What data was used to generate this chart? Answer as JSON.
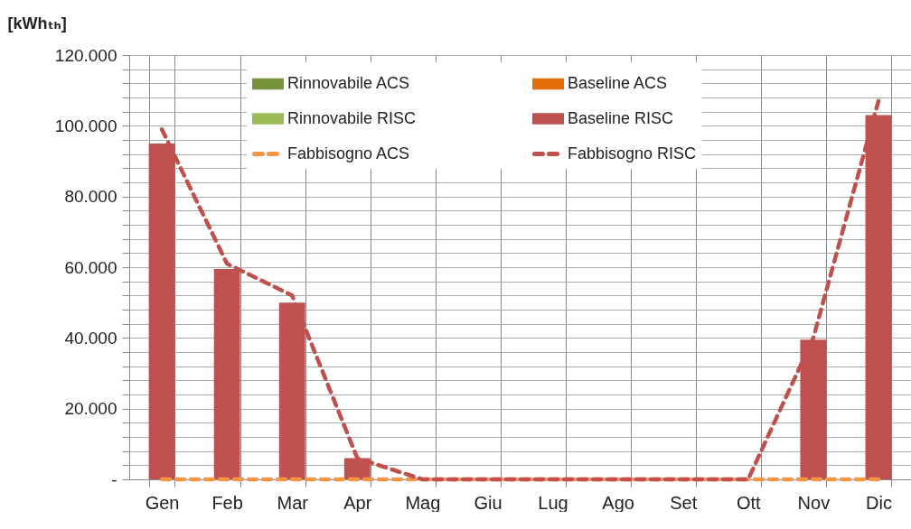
{
  "chart_data": {
    "type": "bar",
    "ylabel": "[kWhₜₕ]",
    "categories": [
      "Gen",
      "Feb",
      "Mar",
      "Apr",
      "Mag",
      "Giu",
      "Lug",
      "Ago",
      "Set",
      "Ott",
      "Nov",
      "Dic"
    ],
    "series": [
      {
        "name": "Rinnovabile ACS",
        "color": "#77933c",
        "values": [
          0,
          0,
          0,
          0,
          0,
          0,
          0,
          0,
          0,
          0,
          0,
          0
        ]
      },
      {
        "name": "Rinnovabile RISC",
        "color": "#9bbb59",
        "values": [
          0,
          0,
          0,
          0,
          0,
          0,
          0,
          0,
          0,
          0,
          0,
          0
        ]
      },
      {
        "name": "Fabbisogno ACS",
        "type": "line",
        "line_style": "dashed",
        "color": "#f79646",
        "values": [
          0,
          0,
          0,
          0,
          0,
          0,
          0,
          0,
          0,
          0,
          0,
          0
        ]
      },
      {
        "name": "Baseline ACS",
        "color": "#e46c0a",
        "values": [
          0,
          0,
          0,
          0,
          0,
          0,
          0,
          0,
          0,
          0,
          0,
          0
        ]
      },
      {
        "name": "Baseline RISC",
        "color": "#c0504d",
        "values": [
          95000,
          59500,
          50000,
          6000,
          0,
          0,
          0,
          0,
          0,
          0,
          39500,
          103000
        ]
      },
      {
        "name": "Fabbisogno RISC",
        "type": "line",
        "line_style": "dashed",
        "color": "#c0504d",
        "values": [
          99000,
          61000,
          52000,
          6000,
          0,
          0,
          0,
          0,
          0,
          0,
          40000,
          107000
        ]
      }
    ],
    "ylim": [
      0,
      120000
    ],
    "yticks": [
      {
        "value": 0,
        "label": "-"
      },
      {
        "value": 4000,
        "label": null
      },
      {
        "value": 8000,
        "label": null
      },
      {
        "value": 12000,
        "label": null
      },
      {
        "value": 16000,
        "label": null
      },
      {
        "value": 20000,
        "label": "20.000"
      },
      {
        "value": 24000,
        "label": null
      },
      {
        "value": 28000,
        "label": null
      },
      {
        "value": 32000,
        "label": null
      },
      {
        "value": 36000,
        "label": null
      },
      {
        "value": 40000,
        "label": "40.000"
      },
      {
        "value": 44000,
        "label": null
      },
      {
        "value": 48000,
        "label": null
      },
      {
        "value": 52000,
        "label": null
      },
      {
        "value": 56000,
        "label": null
      },
      {
        "value": 60000,
        "label": "60.000"
      },
      {
        "value": 64000,
        "label": null
      },
      {
        "value": 68000,
        "label": null
      },
      {
        "value": 72000,
        "label": null
      },
      {
        "value": 76000,
        "label": null
      },
      {
        "value": 80000,
        "label": "80.000"
      },
      {
        "value": 84000,
        "label": null
      },
      {
        "value": 88000,
        "label": null
      },
      {
        "value": 92000,
        "label": null
      },
      {
        "value": 96000,
        "label": null
      },
      {
        "value": 100000,
        "label": "100.000"
      },
      {
        "value": 104000,
        "label": null
      },
      {
        "value": 108000,
        "label": null
      },
      {
        "value": 112000,
        "label": null
      },
      {
        "value": 116000,
        "label": null
      },
      {
        "value": 120000,
        "label": "120.000"
      }
    ],
    "grid": true,
    "legend": "top"
  }
}
